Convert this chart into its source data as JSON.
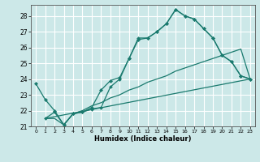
{
  "xlabel": "Humidex (Indice chaleur)",
  "xlim": [
    -0.5,
    23.5
  ],
  "ylim": [
    21,
    28.7
  ],
  "yticks": [
    21,
    22,
    23,
    24,
    25,
    26,
    27,
    28
  ],
  "xticks": [
    0,
    1,
    2,
    3,
    4,
    5,
    6,
    7,
    8,
    9,
    10,
    11,
    12,
    13,
    14,
    15,
    16,
    17,
    18,
    19,
    20,
    21,
    22,
    23
  ],
  "bg_color": "#cce8e8",
  "line_color": "#1a7a6e",
  "grid_color": "#ffffff",
  "line1_x": [
    0,
    1,
    2,
    3,
    4,
    5,
    6,
    7,
    8,
    9,
    10,
    11,
    12,
    13,
    14,
    15,
    16,
    17,
    18,
    19,
    20,
    21,
    22,
    23
  ],
  "line1_y": [
    23.7,
    22.7,
    22.0,
    21.1,
    21.8,
    21.9,
    22.2,
    23.3,
    23.9,
    24.1,
    25.3,
    26.5,
    26.6,
    27.0,
    27.5,
    28.4,
    28.0,
    27.8,
    27.2,
    26.6,
    25.5,
    25.1,
    24.2,
    24.0
  ],
  "line2_x": [
    1,
    2,
    3,
    4,
    5,
    6,
    7,
    8,
    9,
    10,
    11,
    12,
    13,
    14,
    15,
    16,
    17,
    18,
    19,
    20,
    21,
    22,
    23
  ],
  "line2_y": [
    21.5,
    21.9,
    21.1,
    21.8,
    21.9,
    22.1,
    22.2,
    23.5,
    24.0,
    25.3,
    26.6,
    26.6,
    27.0,
    27.5,
    28.4,
    28.0,
    27.8,
    27.2,
    26.6,
    25.5,
    25.1,
    24.2,
    24.0
  ],
  "line3_x": [
    1,
    2,
    3,
    4,
    5,
    6,
    7,
    8,
    9,
    10,
    11,
    12,
    13,
    14,
    15,
    16,
    17,
    18,
    19,
    20,
    21,
    22,
    23
  ],
  "line3_y": [
    21.5,
    21.5,
    21.1,
    21.8,
    22.0,
    22.3,
    22.5,
    22.8,
    23.0,
    23.3,
    23.5,
    23.8,
    24.0,
    24.2,
    24.5,
    24.7,
    24.9,
    25.1,
    25.3,
    25.5,
    25.7,
    25.9,
    24.0
  ],
  "line4_x": [
    1,
    23
  ],
  "line4_y": [
    21.5,
    24.0
  ]
}
